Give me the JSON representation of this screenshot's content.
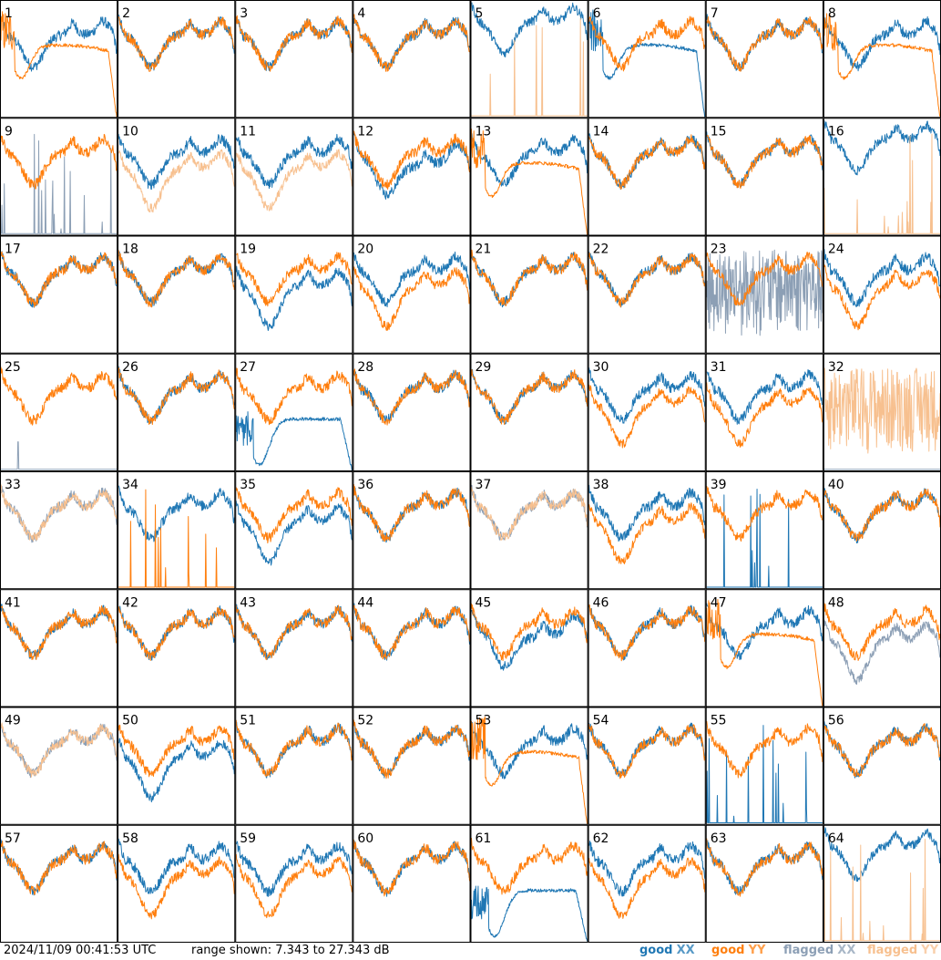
{
  "footer": {
    "timestamp": "2024/11/09 00:41:53 UTC",
    "range_text": "range shown: 7.343 to 27.343 dB",
    "legend": [
      {
        "word": "good",
        "pol": "XX",
        "color": "#1f77b4"
      },
      {
        "word": "good",
        "pol": "YY",
        "color": "#ff7f0e"
      },
      {
        "word": "flagged",
        "pol": "XX",
        "color": "#8c9fb5"
      },
      {
        "word": "flagged",
        "pol": "YY",
        "color": "#f7c08f"
      }
    ]
  },
  "chart_data": {
    "type": "line",
    "layout": "8x8 small multiples",
    "ylim_db": [
      7.343,
      27.343
    ],
    "colors": {
      "good_xx": "#1f77b4",
      "good_yy": "#ff7f0e",
      "flagged_xx": "#8c9fb5",
      "flagged_yy": "#f7c08f"
    },
    "panels": [
      {
        "label": "1",
        "xx": "good",
        "yy": "good",
        "xx_shape": "normal",
        "yy_shape": "dip"
      },
      {
        "label": "2",
        "xx": "good",
        "yy": "good",
        "xx_shape": "normal",
        "yy_shape": "normal"
      },
      {
        "label": "3",
        "xx": "good",
        "yy": "good",
        "xx_shape": "normal",
        "yy_shape": "normal"
      },
      {
        "label": "4",
        "xx": "good",
        "yy": "good",
        "xx_shape": "normal",
        "yy_shape": "normal"
      },
      {
        "label": "5",
        "xx": "good",
        "yy": "flagged",
        "xx_shape": "high",
        "yy_shape": "spikes"
      },
      {
        "label": "6",
        "xx": "good",
        "yy": "good",
        "xx_shape": "dip",
        "yy_shape": "normal"
      },
      {
        "label": "7",
        "xx": "good",
        "yy": "good",
        "xx_shape": "normal",
        "yy_shape": "normal"
      },
      {
        "label": "8",
        "xx": "good",
        "yy": "good",
        "xx_shape": "normal",
        "yy_shape": "dip"
      },
      {
        "label": "9",
        "xx": "flagged",
        "yy": "good",
        "xx_shape": "spikes",
        "yy_shape": "normal"
      },
      {
        "label": "10",
        "xx": "good",
        "yy": "flagged",
        "xx_shape": "normal",
        "yy_shape": "low"
      },
      {
        "label": "11",
        "xx": "good",
        "yy": "flagged",
        "xx_shape": "normal",
        "yy_shape": "low"
      },
      {
        "label": "12",
        "xx": "good",
        "yy": "good",
        "xx_shape": "sagging",
        "yy_shape": "normal"
      },
      {
        "label": "13",
        "xx": "good",
        "yy": "good",
        "xx_shape": "normal",
        "yy_shape": "dip"
      },
      {
        "label": "14",
        "xx": "good",
        "yy": "good",
        "xx_shape": "normal",
        "yy_shape": "normal"
      },
      {
        "label": "15",
        "xx": "good",
        "yy": "good",
        "xx_shape": "normal",
        "yy_shape": "normal"
      },
      {
        "label": "16",
        "xx": "good",
        "yy": "flagged",
        "xx_shape": "high",
        "yy_shape": "spikes"
      },
      {
        "label": "17",
        "xx": "good",
        "yy": "good",
        "xx_shape": "normal",
        "yy_shape": "normal"
      },
      {
        "label": "18",
        "xx": "good",
        "yy": "good",
        "xx_shape": "normal",
        "yy_shape": "normal"
      },
      {
        "label": "19",
        "xx": "good",
        "yy": "good",
        "xx_shape": "low",
        "yy_shape": "normal"
      },
      {
        "label": "20",
        "xx": "good",
        "yy": "good",
        "xx_shape": "normal",
        "yy_shape": "low"
      },
      {
        "label": "21",
        "xx": "good",
        "yy": "good",
        "xx_shape": "normal",
        "yy_shape": "normal"
      },
      {
        "label": "22",
        "xx": "good",
        "yy": "good",
        "xx_shape": "normal",
        "yy_shape": "normal"
      },
      {
        "label": "23",
        "xx": "flagged",
        "yy": "good",
        "xx_shape": "noisy",
        "yy_shape": "normal"
      },
      {
        "label": "24",
        "xx": "good",
        "yy": "good",
        "xx_shape": "normal",
        "yy_shape": "low"
      },
      {
        "label": "25",
        "xx": "flagged",
        "yy": "good",
        "xx_shape": "spike1",
        "yy_shape": "normal"
      },
      {
        "label": "26",
        "xx": "good",
        "yy": "good",
        "xx_shape": "normal",
        "yy_shape": "normal"
      },
      {
        "label": "27",
        "xx": "good",
        "yy": "good",
        "xx_shape": "deep",
        "yy_shape": "normal"
      },
      {
        "label": "28",
        "xx": "good",
        "yy": "good",
        "xx_shape": "normal",
        "yy_shape": "normal"
      },
      {
        "label": "29",
        "xx": "good",
        "yy": "good",
        "xx_shape": "normal",
        "yy_shape": "normal"
      },
      {
        "label": "30",
        "xx": "good",
        "yy": "good",
        "xx_shape": "normal",
        "yy_shape": "low"
      },
      {
        "label": "31",
        "xx": "good",
        "yy": "good",
        "xx_shape": "normal",
        "yy_shape": "low"
      },
      {
        "label": "32",
        "xx": "flagged",
        "yy": "flagged",
        "xx_shape": "baseline",
        "yy_shape": "noisy"
      },
      {
        "label": "33",
        "xx": "flagged",
        "yy": "flagged",
        "xx_shape": "normal",
        "yy_shape": "normal"
      },
      {
        "label": "34",
        "xx": "good",
        "yy": "good",
        "xx_shape": "normal",
        "yy_shape": "spikes"
      },
      {
        "label": "35",
        "xx": "good",
        "yy": "good",
        "xx_shape": "low",
        "yy_shape": "normal"
      },
      {
        "label": "36",
        "xx": "good",
        "yy": "good",
        "xx_shape": "normal",
        "yy_shape": "normal"
      },
      {
        "label": "37",
        "xx": "flagged",
        "yy": "flagged",
        "xx_shape": "normal",
        "yy_shape": "normal"
      },
      {
        "label": "38",
        "xx": "good",
        "yy": "good",
        "xx_shape": "normal",
        "yy_shape": "low"
      },
      {
        "label": "39",
        "xx": "good",
        "yy": "good",
        "xx_shape": "spikes",
        "yy_shape": "normal"
      },
      {
        "label": "40",
        "xx": "good",
        "yy": "good",
        "xx_shape": "normal",
        "yy_shape": "normal"
      },
      {
        "label": "41",
        "xx": "good",
        "yy": "good",
        "xx_shape": "normal",
        "yy_shape": "normal"
      },
      {
        "label": "42",
        "xx": "good",
        "yy": "good",
        "xx_shape": "normal",
        "yy_shape": "normal"
      },
      {
        "label": "43",
        "xx": "good",
        "yy": "good",
        "xx_shape": "normal",
        "yy_shape": "normal"
      },
      {
        "label": "44",
        "xx": "good",
        "yy": "good",
        "xx_shape": "normal",
        "yy_shape": "normal"
      },
      {
        "label": "45",
        "xx": "good",
        "yy": "good",
        "xx_shape": "sagging",
        "yy_shape": "normal"
      },
      {
        "label": "46",
        "xx": "good",
        "yy": "good",
        "xx_shape": "normal",
        "yy_shape": "normal"
      },
      {
        "label": "47",
        "xx": "good",
        "yy": "good",
        "xx_shape": "normal",
        "yy_shape": "dip"
      },
      {
        "label": "48",
        "xx": "flagged",
        "yy": "good",
        "xx_shape": "low",
        "yy_shape": "normal"
      },
      {
        "label": "49",
        "xx": "flagged",
        "yy": "flagged",
        "xx_shape": "normal",
        "yy_shape": "normal"
      },
      {
        "label": "50",
        "xx": "good",
        "yy": "good",
        "xx_shape": "low",
        "yy_shape": "normal"
      },
      {
        "label": "51",
        "xx": "good",
        "yy": "good",
        "xx_shape": "normal",
        "yy_shape": "normal"
      },
      {
        "label": "52",
        "xx": "good",
        "yy": "good",
        "xx_shape": "normal",
        "yy_shape": "normal"
      },
      {
        "label": "53",
        "xx": "good",
        "yy": "good",
        "xx_shape": "normal",
        "yy_shape": "dip"
      },
      {
        "label": "54",
        "xx": "good",
        "yy": "good",
        "xx_shape": "normal",
        "yy_shape": "normal"
      },
      {
        "label": "55",
        "xx": "good",
        "yy": "good",
        "xx_shape": "spikes",
        "yy_shape": "normal"
      },
      {
        "label": "56",
        "xx": "good",
        "yy": "good",
        "xx_shape": "normal",
        "yy_shape": "normal"
      },
      {
        "label": "57",
        "xx": "good",
        "yy": "good",
        "xx_shape": "normal",
        "yy_shape": "normal"
      },
      {
        "label": "58",
        "xx": "good",
        "yy": "good",
        "xx_shape": "normal",
        "yy_shape": "low"
      },
      {
        "label": "59",
        "xx": "good",
        "yy": "good",
        "xx_shape": "normal",
        "yy_shape": "low"
      },
      {
        "label": "60",
        "xx": "good",
        "yy": "good",
        "xx_shape": "normal",
        "yy_shape": "normal"
      },
      {
        "label": "61",
        "xx": "good",
        "yy": "good",
        "xx_shape": "deep",
        "yy_shape": "normal"
      },
      {
        "label": "62",
        "xx": "good",
        "yy": "good",
        "xx_shape": "normal",
        "yy_shape": "low"
      },
      {
        "label": "63",
        "xx": "good",
        "yy": "good",
        "xx_shape": "normal",
        "yy_shape": "normal"
      },
      {
        "label": "64",
        "xx": "good",
        "yy": "flagged",
        "xx_shape": "high",
        "yy_shape": "spikes"
      }
    ]
  }
}
